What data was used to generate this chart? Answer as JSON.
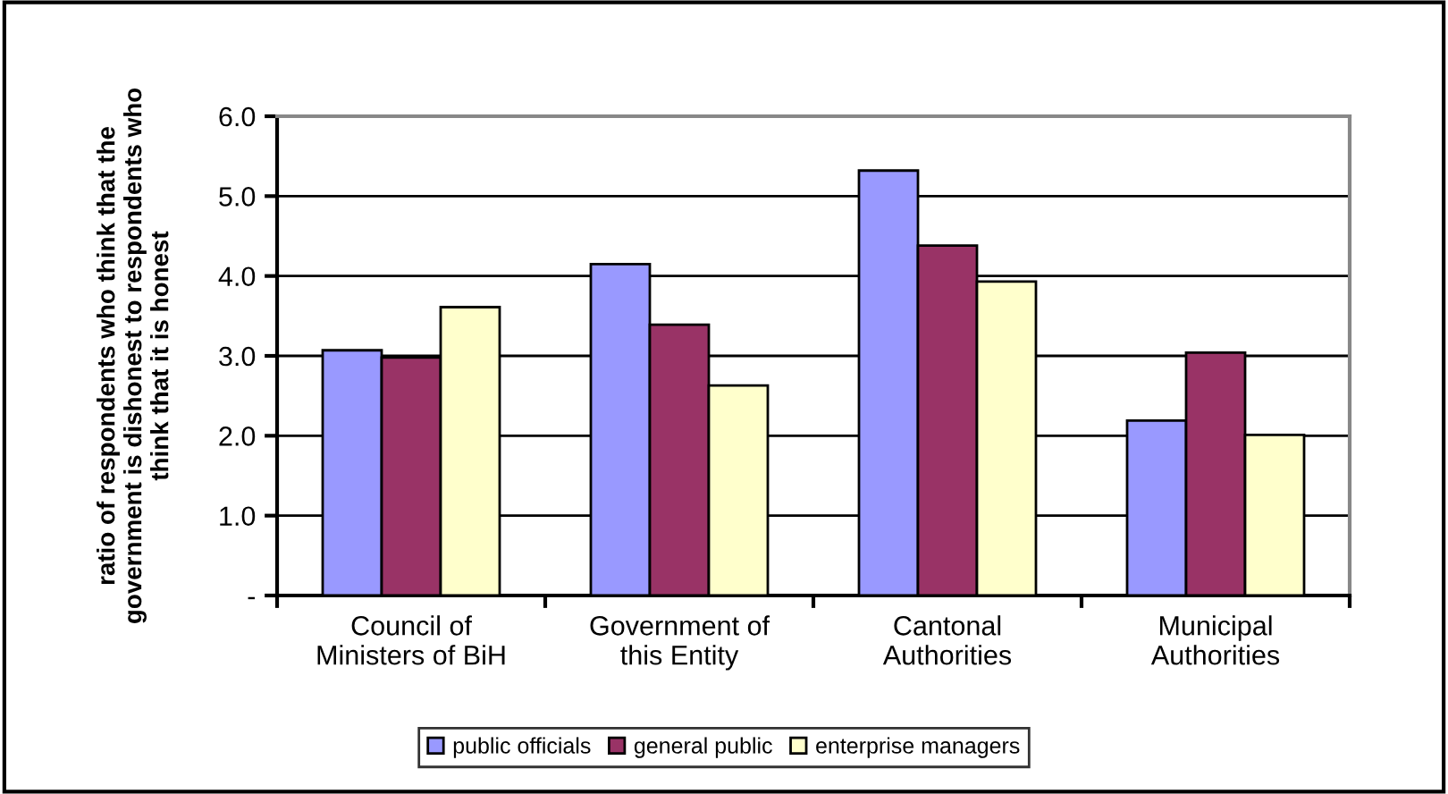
{
  "chart_data": {
    "type": "bar",
    "ylabel": "ratio of respondents who think that the\ngovernment is dishonest to respondents who\nthink that it is honest",
    "categories": [
      "Council of\nMinisters of BiH",
      "Government of\nthis Entity",
      "Cantonal\nAuthorities",
      "Municipal\nAuthorities"
    ],
    "series": [
      {
        "name": "public officials",
        "color": "#9999ff",
        "values": [
          3.07,
          4.15,
          5.32,
          2.19
        ]
      },
      {
        "name": "general public",
        "color": "#993366",
        "values": [
          2.98,
          3.39,
          4.38,
          3.04
        ]
      },
      {
        "name": "enterprise managers",
        "color": "#ffffcc",
        "values": [
          3.61,
          2.63,
          3.93,
          2.01
        ]
      }
    ],
    "ylim": [
      0,
      6
    ],
    "yticks": [
      {
        "value": 0,
        "label": "-"
      },
      {
        "value": 1,
        "label": "1.0"
      },
      {
        "value": 2,
        "label": "2.0"
      },
      {
        "value": 3,
        "label": "3.0"
      },
      {
        "value": 4,
        "label": "4.0"
      },
      {
        "value": 5,
        "label": "5.0"
      },
      {
        "value": 6,
        "label": "6.0"
      }
    ],
    "grid": "y",
    "legend": "bottom"
  }
}
